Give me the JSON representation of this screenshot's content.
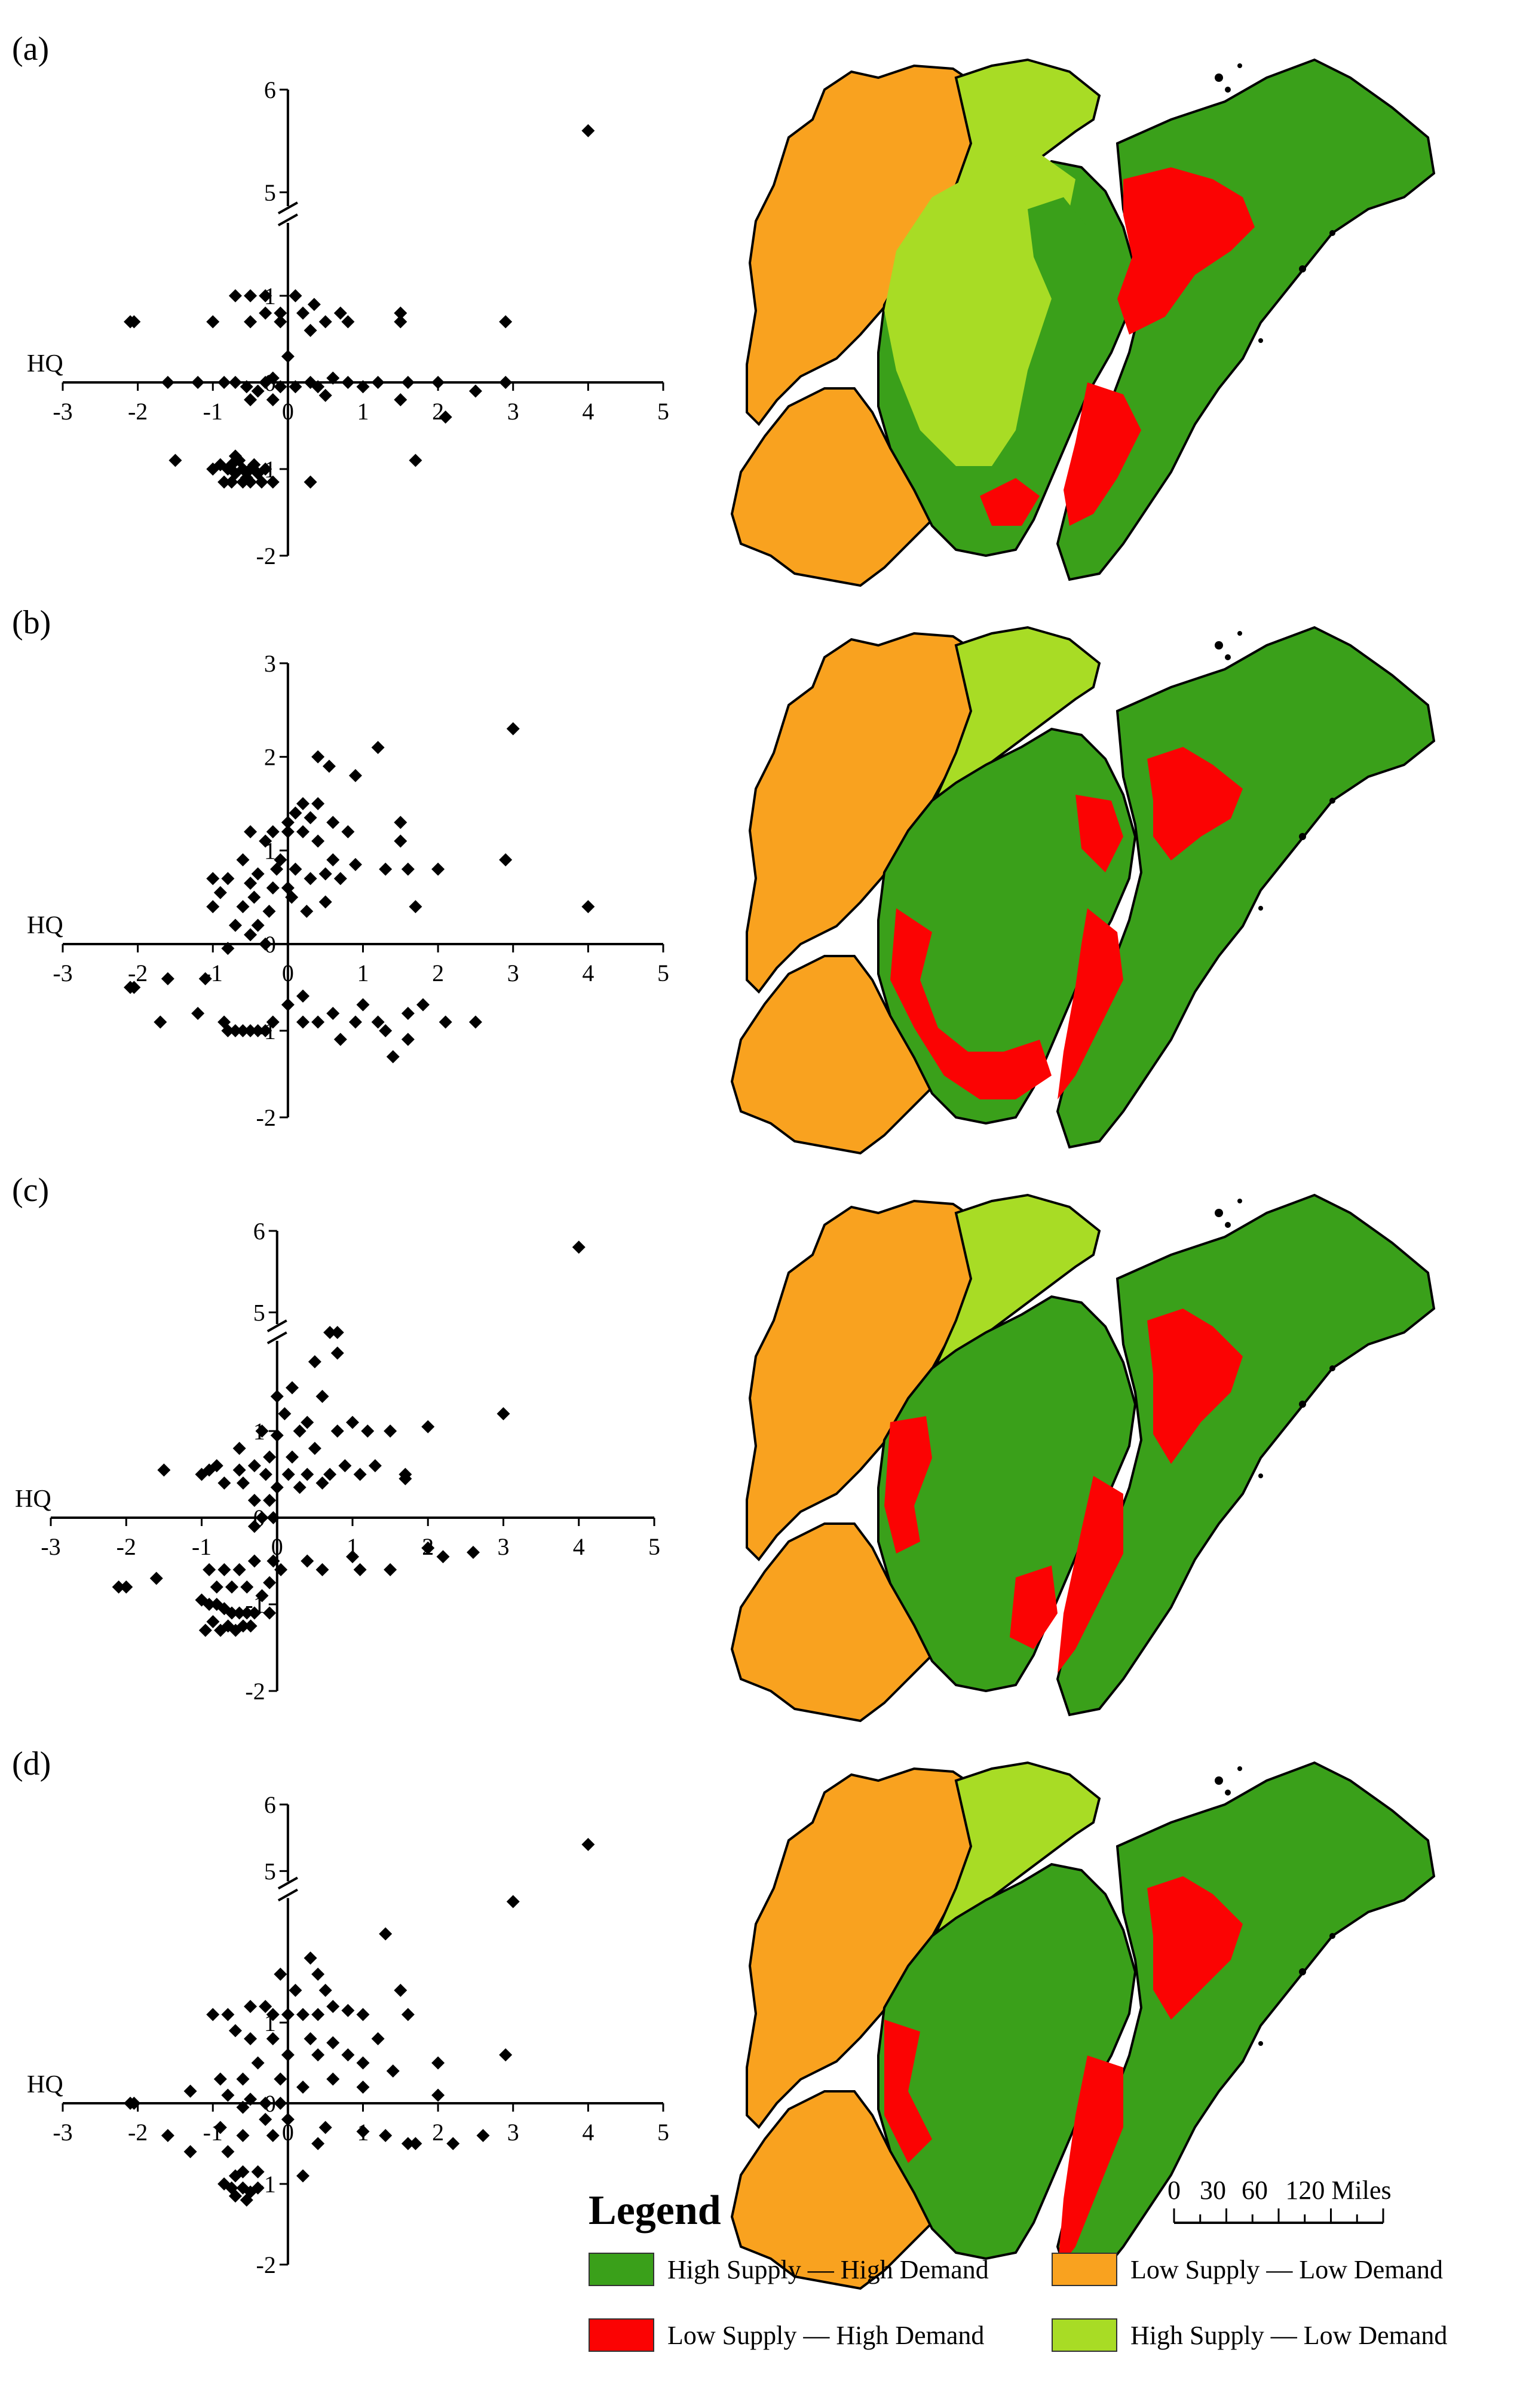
{
  "colors": {
    "high_supply_high_demand": "#3aa01a",
    "low_supply_high_demand": "#fb0303",
    "low_supply_low_demand": "#f9a21f",
    "high_supply_low_demand": "#a8dc25"
  },
  "legend": {
    "title": "Legend",
    "items": [
      {
        "key": "high_supply_high_demand",
        "label": "High Supply — High Demand"
      },
      {
        "key": "low_supply_low_demand",
        "label": "Low Supply — Low Demand"
      },
      {
        "key": "low_supply_high_demand",
        "label": "Low Supply — High Demand"
      },
      {
        "key": "high_supply_low_demand",
        "label": "High Supply — Low Demand"
      }
    ]
  },
  "scale_bar": {
    "ticks": [
      "0",
      "30",
      "60"
    ],
    "end_label": "120 Miles"
  },
  "chart_data": [
    {
      "panel": "(a)",
      "type": "scatter",
      "xlabel": "",
      "ylabel": "HQ",
      "xlim": [
        -3,
        5
      ],
      "xticks": [
        "-3",
        "-2",
        "-1",
        "0",
        "1",
        "2",
        "3",
        "4",
        "5"
      ],
      "ylim": [
        -2,
        6
      ],
      "yticks": [
        "6",
        "5",
        "1",
        "0",
        "-1",
        "-2"
      ],
      "y_axis_break": [
        1.8,
        4.9
      ],
      "points": [
        [
          4,
          5.6
        ],
        [
          2.9,
          0.7
        ],
        [
          -2.1,
          0.7
        ],
        [
          -2.05,
          0.7
        ],
        [
          -0.5,
          1.0
        ],
        [
          -0.3,
          1.0
        ],
        [
          -0.7,
          1.0
        ],
        [
          -0.5,
          0.7
        ],
        [
          -0.3,
          0.8
        ],
        [
          -0.1,
          0.8
        ],
        [
          0.2,
          0.8
        ],
        [
          0.35,
          0.9
        ],
        [
          0.1,
          1.0
        ],
        [
          0.5,
          0.7
        ],
        [
          0.7,
          0.8
        ],
        [
          0.8,
          0.7
        ],
        [
          1.5,
          0.8
        ],
        [
          1.5,
          0.7
        ],
        [
          -1.0,
          0.7
        ],
        [
          0.0,
          0.3
        ],
        [
          -0.1,
          0.7
        ],
        [
          0.3,
          0.6
        ],
        [
          -1.6,
          0.0
        ],
        [
          -1.2,
          0.0
        ],
        [
          -0.85,
          0.0
        ],
        [
          -0.7,
          0.0
        ],
        [
          -0.55,
          -0.05
        ],
        [
          -0.4,
          -0.1
        ],
        [
          -0.3,
          0.0
        ],
        [
          -0.2,
          0.05
        ],
        [
          -0.1,
          -0.05
        ],
        [
          0.1,
          -0.05
        ],
        [
          0.3,
          0.0
        ],
        [
          0.4,
          -0.05
        ],
        [
          0.6,
          0.05
        ],
        [
          0.8,
          0.0
        ],
        [
          1.0,
          -0.05
        ],
        [
          1.2,
          0.0
        ],
        [
          1.6,
          0.0
        ],
        [
          2.0,
          0.0
        ],
        [
          2.5,
          -0.1
        ],
        [
          2.9,
          0.0
        ],
        [
          2.1,
          -0.4
        ],
        [
          1.5,
          -0.2
        ],
        [
          0.5,
          -0.15
        ],
        [
          -0.2,
          -0.2
        ],
        [
          -0.5,
          -0.2
        ],
        [
          1.7,
          -0.9
        ],
        [
          -1.5,
          -0.9
        ],
        [
          -1.0,
          -1.0
        ],
        [
          -0.9,
          -0.95
        ],
        [
          -0.8,
          -1.0
        ],
        [
          -0.7,
          -1.05
        ],
        [
          -0.65,
          -0.9
        ],
        [
          -0.6,
          -1.0
        ],
        [
          -0.55,
          -1.1
        ],
        [
          -0.5,
          -1.0
        ],
        [
          -0.45,
          -0.95
        ],
        [
          -0.4,
          -1.05
        ],
        [
          -0.3,
          -1.0
        ],
        [
          -0.7,
          -0.85
        ],
        [
          -0.85,
          -1.15
        ],
        [
          -0.75,
          -1.15
        ],
        [
          -0.6,
          -1.15
        ],
        [
          -0.5,
          -1.15
        ],
        [
          -0.35,
          -1.15
        ],
        [
          -0.75,
          -0.95
        ],
        [
          0.3,
          -1.15
        ],
        [
          -0.2,
          -1.15
        ]
      ]
    },
    {
      "panel": "(b)",
      "type": "scatter",
      "xlabel": "",
      "ylabel": "HQ",
      "xlim": [
        -3,
        5
      ],
      "xticks": [
        "-3",
        "-2",
        "-1",
        "0",
        "1",
        "2",
        "3",
        "4",
        "5"
      ],
      "ylim": [
        -2,
        3
      ],
      "yticks": [
        "3",
        "2",
        "1",
        "0",
        "-1",
        "-2"
      ],
      "points": [
        [
          3,
          2.3
        ],
        [
          1.2,
          2.1
        ],
        [
          0.4,
          2.0
        ],
        [
          0.55,
          1.9
        ],
        [
          0.9,
          1.8
        ],
        [
          0.2,
          1.5
        ],
        [
          0.4,
          1.5
        ],
        [
          0.1,
          1.4
        ],
        [
          0.0,
          1.3
        ],
        [
          0.3,
          1.35
        ],
        [
          0.6,
          1.3
        ],
        [
          1.5,
          1.3
        ],
        [
          -0.2,
          1.2
        ],
        [
          -0.5,
          1.2
        ],
        [
          0.0,
          1.2
        ],
        [
          0.2,
          1.2
        ],
        [
          0.8,
          1.2
        ],
        [
          1.5,
          1.1
        ],
        [
          -0.3,
          1.1
        ],
        [
          0.4,
          1.1
        ],
        [
          -0.1,
          0.9
        ],
        [
          -0.6,
          0.9
        ],
        [
          0.6,
          0.9
        ],
        [
          0.9,
          0.85
        ],
        [
          -0.15,
          0.8
        ],
        [
          0.1,
          0.8
        ],
        [
          -0.4,
          0.75
        ],
        [
          0.5,
          0.75
        ],
        [
          1.3,
          0.8
        ],
        [
          2.9,
          0.9
        ],
        [
          2.0,
          0.8
        ],
        [
          1.6,
          0.8
        ],
        [
          0.3,
          0.7
        ],
        [
          0.7,
          0.7
        ],
        [
          -1.0,
          0.7
        ],
        [
          -0.8,
          0.7
        ],
        [
          -0.5,
          0.65
        ],
        [
          0.0,
          0.6
        ],
        [
          -0.2,
          0.6
        ],
        [
          -0.9,
          0.55
        ],
        [
          -0.45,
          0.5
        ],
        [
          0.05,
          0.5
        ],
        [
          0.5,
          0.45
        ],
        [
          -1.0,
          0.4
        ],
        [
          -0.6,
          0.4
        ],
        [
          -0.25,
          0.35
        ],
        [
          0.25,
          0.35
        ],
        [
          1.7,
          0.4
        ],
        [
          4,
          0.4
        ],
        [
          -0.7,
          0.2
        ],
        [
          -0.4,
          0.2
        ],
        [
          -0.5,
          0.1
        ],
        [
          -0.3,
          0.0
        ],
        [
          -0.8,
          -0.05
        ],
        [
          -2.1,
          -0.5
        ],
        [
          -2.05,
          -0.5
        ],
        [
          -1.6,
          -0.4
        ],
        [
          -1.1,
          -0.4
        ],
        [
          -1.2,
          -0.8
        ],
        [
          -1.7,
          -0.9
        ],
        [
          -0.85,
          -0.9
        ],
        [
          -0.8,
          -1.0
        ],
        [
          -0.7,
          -1.0
        ],
        [
          -0.6,
          -1.0
        ],
        [
          -0.5,
          -1.0
        ],
        [
          -0.4,
          -1.0
        ],
        [
          -0.3,
          -1.0
        ],
        [
          -0.2,
          -0.9
        ],
        [
          0.2,
          -0.9
        ],
        [
          0.4,
          -0.9
        ],
        [
          0.0,
          -0.7
        ],
        [
          0.2,
          -0.6
        ],
        [
          0.6,
          -0.8
        ],
        [
          1.0,
          -0.7
        ],
        [
          1.2,
          -0.9
        ],
        [
          1.6,
          -0.8
        ],
        [
          1.8,
          -0.7
        ],
        [
          2.1,
          -0.9
        ],
        [
          2.5,
          -0.9
        ],
        [
          1.3,
          -1.0
        ],
        [
          0.9,
          -0.9
        ],
        [
          1.6,
          -1.1
        ],
        [
          0.7,
          -1.1
        ],
        [
          1.4,
          -1.3
        ]
      ]
    },
    {
      "panel": "(c)",
      "type": "scatter",
      "xlabel": "",
      "ylabel": "HQ",
      "xlim": [
        -3,
        5
      ],
      "xticks": [
        "-3",
        "-2",
        "-1",
        "0",
        "1",
        "2",
        "3",
        "4",
        "5"
      ],
      "ylim": [
        -2,
        6
      ],
      "yticks": [
        "6",
        "5",
        "1",
        "0",
        "-1",
        "-2"
      ],
      "y_axis_break": [
        2.0,
        4.9
      ],
      "points": [
        [
          4,
          5.8
        ],
        [
          3,
          1.2
        ],
        [
          0.7,
          2.2
        ],
        [
          0.8,
          2.1
        ],
        [
          0.8,
          1.9
        ],
        [
          0.5,
          1.8
        ],
        [
          0.2,
          1.5
        ],
        [
          0.0,
          1.4
        ],
        [
          0.6,
          1.4
        ],
        [
          0.1,
          1.2
        ],
        [
          0.4,
          1.1
        ],
        [
          1.0,
          1.1
        ],
        [
          0.3,
          1.0
        ],
        [
          0.8,
          1.0
        ],
        [
          1.2,
          1.0
        ],
        [
          1.5,
          1.0
        ],
        [
          2.0,
          1.05
        ],
        [
          -0.2,
          1.0
        ],
        [
          0.0,
          0.95
        ],
        [
          -0.5,
          0.8
        ],
        [
          -0.1,
          0.7
        ],
        [
          0.2,
          0.7
        ],
        [
          0.5,
          0.8
        ],
        [
          0.9,
          0.6
        ],
        [
          1.3,
          0.6
        ],
        [
          1.7,
          0.5
        ],
        [
          -0.8,
          0.6
        ],
        [
          -0.5,
          0.55
        ],
        [
          -0.3,
          0.6
        ],
        [
          -0.15,
          0.5
        ],
        [
          0.15,
          0.5
        ],
        [
          0.4,
          0.5
        ],
        [
          0.7,
          0.5
        ],
        [
          1.1,
          0.5
        ],
        [
          1.7,
          0.45
        ],
        [
          -1.5,
          0.55
        ],
        [
          -1.0,
          0.5
        ],
        [
          -0.9,
          0.55
        ],
        [
          -0.7,
          0.4
        ],
        [
          -0.45,
          0.4
        ],
        [
          0.0,
          0.35
        ],
        [
          0.3,
          0.35
        ],
        [
          0.6,
          0.4
        ],
        [
          -0.3,
          0.2
        ],
        [
          -0.1,
          0.2
        ],
        [
          -0.2,
          0.0
        ],
        [
          -0.05,
          0.0
        ],
        [
          -0.3,
          -0.1
        ],
        [
          -1.6,
          -0.7
        ],
        [
          -2.1,
          -0.8
        ],
        [
          -2.0,
          -0.8
        ],
        [
          -0.9,
          -0.6
        ],
        [
          -0.7,
          -0.6
        ],
        [
          -0.5,
          -0.6
        ],
        [
          -0.3,
          -0.5
        ],
        [
          -0.05,
          -0.5
        ],
        [
          0.05,
          -0.6
        ],
        [
          -0.8,
          -0.8
        ],
        [
          -0.6,
          -0.8
        ],
        [
          -0.4,
          -0.8
        ],
        [
          -1.0,
          -0.95
        ],
        [
          -0.9,
          -1.0
        ],
        [
          -0.8,
          -1.0
        ],
        [
          -0.7,
          -1.05
        ],
        [
          -0.6,
          -1.1
        ],
        [
          -0.5,
          -1.1
        ],
        [
          -0.4,
          -1.1
        ],
        [
          -0.3,
          -1.1
        ],
        [
          -0.1,
          -1.1
        ],
        [
          -0.2,
          -0.9
        ],
        [
          -0.85,
          -1.2
        ],
        [
          -0.65,
          -1.25
        ],
        [
          -0.45,
          -1.25
        ],
        [
          -0.95,
          -1.3
        ],
        [
          -0.75,
          -1.3
        ],
        [
          -0.55,
          -1.3
        ],
        [
          -0.35,
          -1.25
        ],
        [
          -0.1,
          -0.75
        ],
        [
          0.4,
          -0.5
        ],
        [
          0.6,
          -0.6
        ],
        [
          1.0,
          -0.45
        ],
        [
          1.5,
          -0.6
        ],
        [
          2.0,
          -0.35
        ],
        [
          2.2,
          -0.45
        ],
        [
          2.6,
          -0.4
        ],
        [
          1.1,
          -0.6
        ]
      ]
    },
    {
      "panel": "(d)",
      "type": "scatter",
      "xlabel": "",
      "ylabel": "HQ",
      "xlim": [
        -3,
        5
      ],
      "xticks": [
        "-3",
        "-2",
        "-1",
        "0",
        "1",
        "2",
        "3",
        "4",
        "5"
      ],
      "ylim": [
        -2,
        6
      ],
      "yticks": [
        "6",
        "5",
        "1",
        "0",
        "-1",
        "-2"
      ],
      "y_axis_break": [
        2.5,
        4.9
      ],
      "points": [
        [
          4,
          5.4
        ],
        [
          3,
          2.5
        ],
        [
          1.3,
          2.1
        ],
        [
          0.3,
          1.8
        ],
        [
          -0.1,
          1.6
        ],
        [
          0.4,
          1.6
        ],
        [
          0.1,
          1.4
        ],
        [
          0.5,
          1.4
        ],
        [
          1.5,
          1.4
        ],
        [
          -0.5,
          1.2
        ],
        [
          -0.3,
          1.2
        ],
        [
          -0.2,
          1.1
        ],
        [
          0.0,
          1.1
        ],
        [
          0.2,
          1.1
        ],
        [
          0.4,
          1.1
        ],
        [
          0.6,
          1.2
        ],
        [
          0.8,
          1.15
        ],
        [
          1.0,
          1.1
        ],
        [
          1.6,
          1.1
        ],
        [
          -0.8,
          1.1
        ],
        [
          -1.0,
          1.1
        ],
        [
          -0.7,
          0.9
        ],
        [
          -0.5,
          0.8
        ],
        [
          -0.2,
          0.8
        ],
        [
          0.3,
          0.8
        ],
        [
          0.6,
          0.75
        ],
        [
          1.2,
          0.8
        ],
        [
          0.0,
          0.6
        ],
        [
          0.4,
          0.6
        ],
        [
          0.8,
          0.6
        ],
        [
          1.0,
          0.5
        ],
        [
          -0.4,
          0.5
        ],
        [
          2.9,
          0.6
        ],
        [
          2.0,
          0.5
        ],
        [
          1.4,
          0.4
        ],
        [
          0.6,
          0.3
        ],
        [
          -0.9,
          0.3
        ],
        [
          -0.6,
          0.3
        ],
        [
          -0.1,
          0.3
        ],
        [
          0.2,
          0.2
        ],
        [
          1.0,
          0.2
        ],
        [
          2.0,
          0.1
        ],
        [
          -0.8,
          0.1
        ],
        [
          -0.5,
          0.05
        ],
        [
          -0.3,
          0.0
        ],
        [
          -0.1,
          0.0
        ],
        [
          -1.3,
          0.15
        ],
        [
          -2.1,
          0.0
        ],
        [
          -2.05,
          0.0
        ],
        [
          -0.6,
          -0.05
        ],
        [
          -0.3,
          -0.2
        ],
        [
          -0.9,
          -0.3
        ],
        [
          -0.6,
          -0.4
        ],
        [
          -0.2,
          -0.4
        ],
        [
          0.0,
          -0.2
        ],
        [
          0.5,
          -0.3
        ],
        [
          1.0,
          -0.35
        ],
        [
          1.3,
          -0.4
        ],
        [
          1.6,
          -0.5
        ],
        [
          1.7,
          -0.5
        ],
        [
          2.2,
          -0.5
        ],
        [
          2.6,
          -0.4
        ],
        [
          -1.6,
          -0.4
        ],
        [
          -1.3,
          -0.6
        ],
        [
          -0.8,
          -0.6
        ],
        [
          -0.7,
          -0.9
        ],
        [
          -0.6,
          -0.85
        ],
        [
          -0.4,
          -0.85
        ],
        [
          -0.85,
          -1.0
        ],
        [
          -0.75,
          -1.05
        ],
        [
          -0.6,
          -1.05
        ],
        [
          -0.5,
          -1.1
        ],
        [
          -0.4,
          -1.05
        ],
        [
          -0.7,
          -1.15
        ],
        [
          -0.55,
          -1.2
        ],
        [
          0.2,
          -0.9
        ],
        [
          0.4,
          -0.5
        ]
      ]
    }
  ]
}
